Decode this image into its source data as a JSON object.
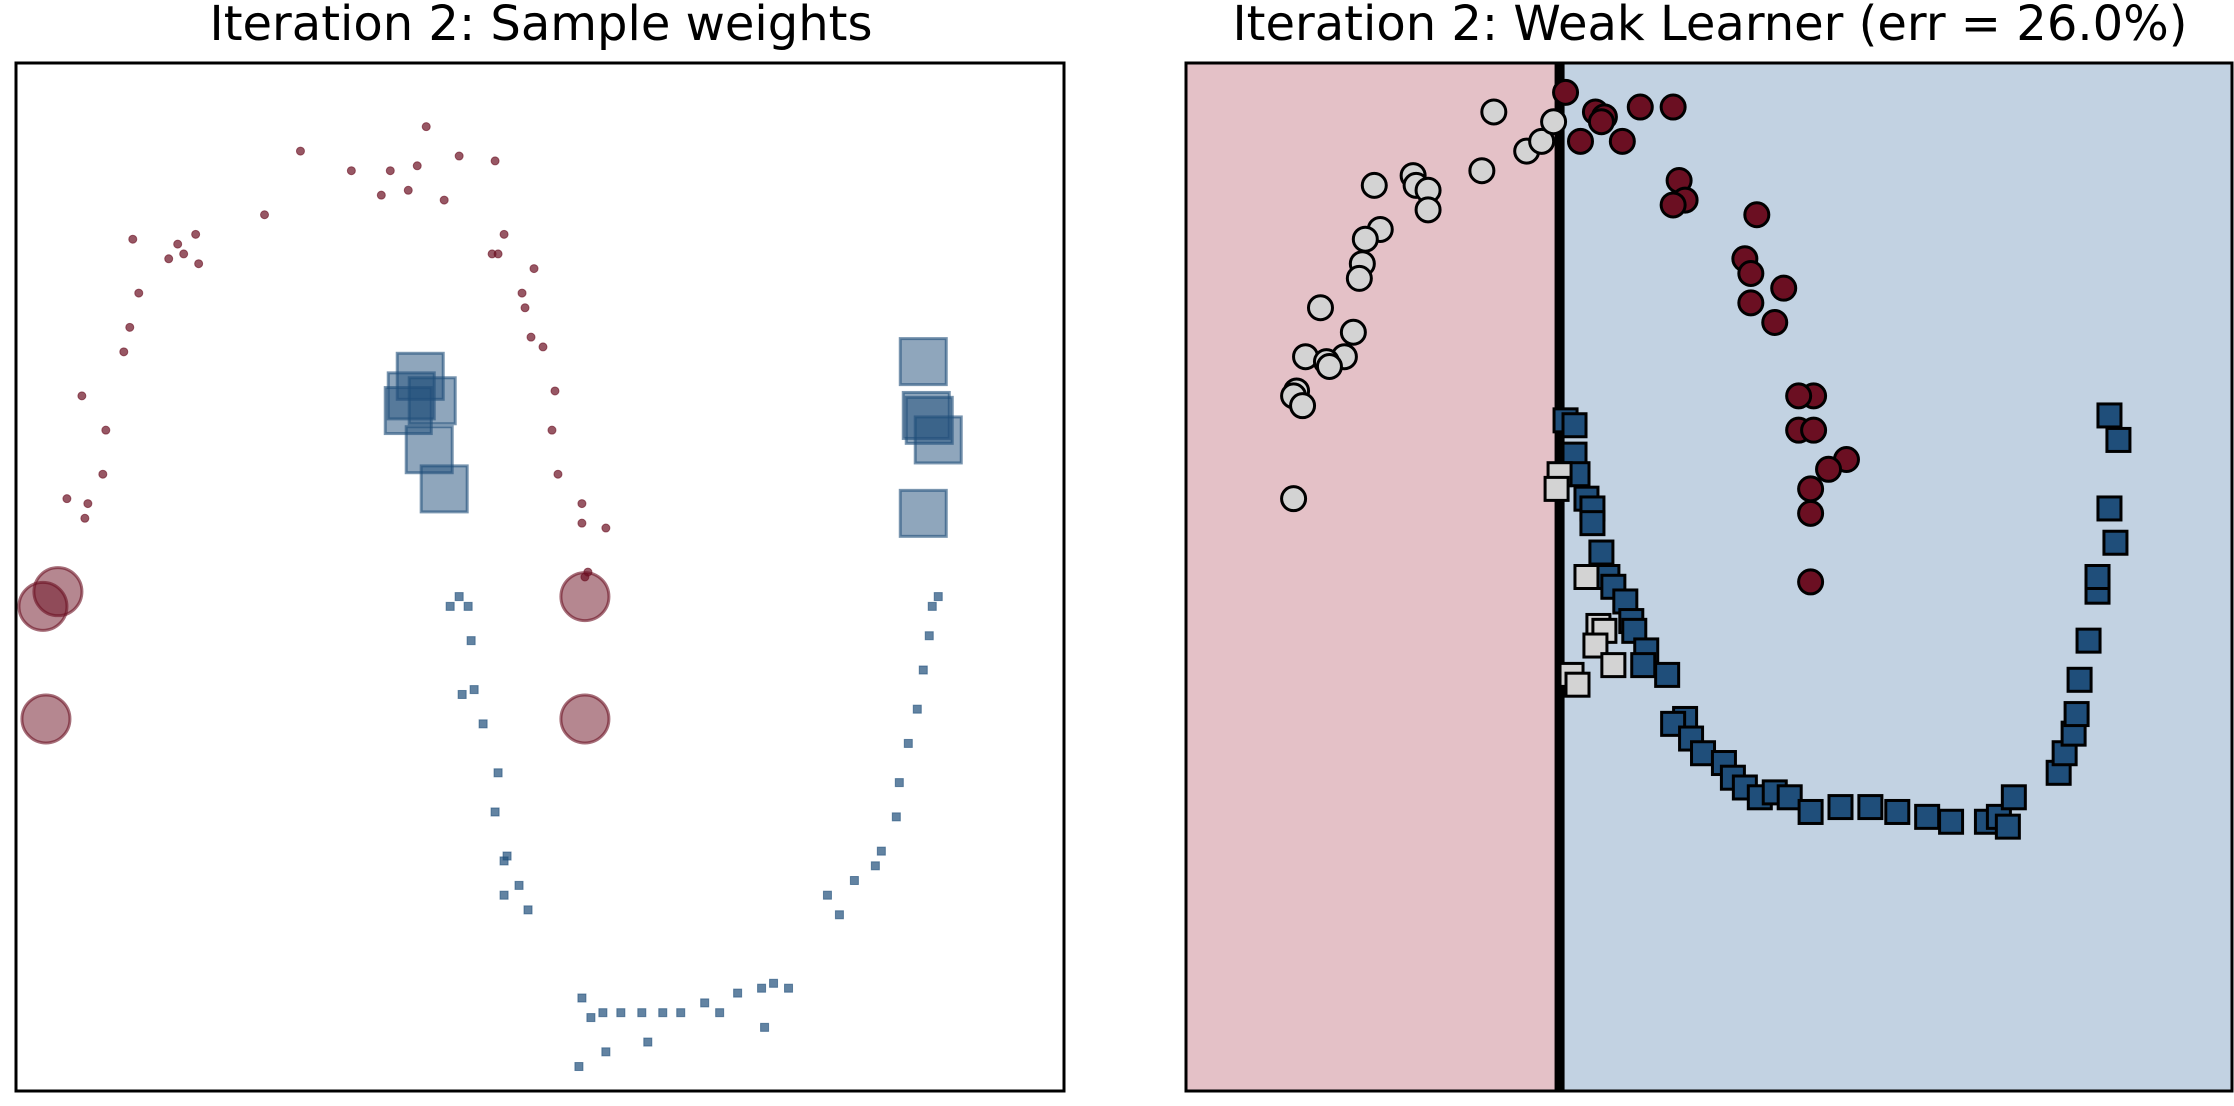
{
  "panels": [
    {
      "title": "Iteration 2: Sample weights"
    },
    {
      "title": "Iteration 2: Weak Learner (err = 26.0%)"
    }
  ],
  "colors": {
    "class0": "#6b0f22",
    "class1": "#1f4e7a",
    "region0": "#e4c1c7",
    "region1": "#c2d2e2",
    "misclassified_fill": "#d3d3d3",
    "boundary": "#000000"
  },
  "chart_data": [
    {
      "type": "scatter",
      "title": "Iteration 2: Sample weights",
      "xlabel": "",
      "ylabel": "",
      "xlim": [
        -1.25,
        2.25
      ],
      "ylim": [
        -0.8,
        1.3
      ],
      "grid": false,
      "encoding": "marker area proportional to sample weight; circles = class 0, squares = class 1",
      "series": [
        {
          "name": "class 0",
          "marker": "circle",
          "points": [
            [
              0.12,
              1.17
            ],
            [
              -0.3,
              1.12
            ],
            [
              -0.13,
              1.08
            ],
            [
              0.0,
              1.08
            ],
            [
              0.09,
              1.09
            ],
            [
              0.23,
              1.11
            ],
            [
              0.35,
              1.1
            ],
            [
              0.06,
              1.04
            ],
            [
              -0.03,
              1.03
            ],
            [
              0.18,
              1.02
            ],
            [
              -0.42,
              0.99
            ],
            [
              -0.65,
              0.95
            ],
            [
              -0.71,
              0.93
            ],
            [
              -0.69,
              0.91
            ],
            [
              -0.74,
              0.9
            ],
            [
              -0.64,
              0.89
            ],
            [
              -0.86,
              0.94
            ],
            [
              0.38,
              0.95
            ],
            [
              0.34,
              0.91
            ],
            [
              0.36,
              0.91
            ],
            [
              0.48,
              0.88
            ],
            [
              -0.84,
              0.83
            ],
            [
              0.44,
              0.83
            ],
            [
              -0.87,
              0.76
            ],
            [
              0.45,
              0.8
            ],
            [
              0.47,
              0.74
            ],
            [
              -0.89,
              0.71
            ],
            [
              0.51,
              0.72
            ],
            [
              -1.03,
              0.62
            ],
            [
              0.55,
              0.63
            ],
            [
              -0.95,
              0.55
            ],
            [
              0.54,
              0.55
            ],
            [
              -0.96,
              0.46
            ],
            [
              0.56,
              0.46
            ],
            [
              -1.08,
              0.41
            ],
            [
              -1.01,
              0.4
            ],
            [
              0.64,
              0.4
            ],
            [
              -1.02,
              0.37
            ],
            [
              0.64,
              0.36
            ],
            [
              0.72,
              0.35
            ],
            [
              0.66,
              0.26
            ],
            [
              0.65,
              0.25
            ]
          ],
          "weights_large": [
            [
              -1.11,
              0.22
            ],
            [
              -1.16,
              0.19
            ],
            [
              0.65,
              0.21
            ],
            [
              -1.15,
              -0.04
            ],
            [
              0.65,
              -0.04
            ]
          ]
        },
        {
          "name": "class 1",
          "marker": "square",
          "points": [
            [
              0.23,
              0.21
            ],
            [
              0.26,
              0.19
            ],
            [
              0.2,
              0.19
            ],
            [
              0.27,
              0.12
            ],
            [
              0.28,
              0.02
            ],
            [
              0.24,
              0.01
            ],
            [
              0.31,
              -0.05
            ],
            [
              0.36,
              -0.15
            ],
            [
              0.35,
              -0.23
            ],
            [
              0.39,
              -0.32
            ],
            [
              0.38,
              -0.33
            ],
            [
              0.43,
              -0.38
            ],
            [
              0.38,
              -0.4
            ],
            [
              0.46,
              -0.43
            ],
            [
              0.64,
              -0.61
            ],
            [
              0.67,
              -0.65
            ],
            [
              0.71,
              -0.64
            ],
            [
              0.77,
              -0.64
            ],
            [
              0.84,
              -0.64
            ],
            [
              0.91,
              -0.64
            ],
            [
              0.97,
              -0.64
            ],
            [
              1.05,
              -0.62
            ],
            [
              1.1,
              -0.64
            ],
            [
              1.16,
              -0.6
            ],
            [
              1.24,
              -0.59
            ],
            [
              1.28,
              -0.58
            ],
            [
              1.33,
              -0.59
            ],
            [
              1.25,
              -0.67
            ],
            [
              0.72,
              -0.72
            ],
            [
              0.86,
              -0.7
            ],
            [
              0.63,
              -0.75
            ],
            [
              1.46,
              -0.4
            ],
            [
              1.55,
              -0.37
            ],
            [
              1.5,
              -0.44
            ],
            [
              1.62,
              -0.34
            ],
            [
              1.64,
              -0.31
            ],
            [
              1.69,
              -0.24
            ],
            [
              1.7,
              -0.17
            ],
            [
              1.73,
              -0.09
            ],
            [
              1.76,
              -0.02
            ],
            [
              1.78,
              0.06
            ],
            [
              1.8,
              0.13
            ],
            [
              1.81,
              0.19
            ],
            [
              1.83,
              0.21
            ]
          ],
          "weights_large": [
            [
              0.1,
              0.66
            ],
            [
              0.06,
              0.59
            ],
            [
              0.07,
              0.62
            ],
            [
              0.14,
              0.61
            ],
            [
              0.13,
              0.51
            ],
            [
              0.18,
              0.43
            ],
            [
              1.78,
              0.69
            ],
            [
              1.79,
              0.58
            ],
            [
              1.8,
              0.57
            ],
            [
              1.83,
              0.53
            ],
            [
              1.78,
              0.38
            ]
          ]
        }
      ]
    },
    {
      "type": "scatter",
      "title": "Iteration 2: Weak Learner (err = 26.0%)",
      "xlabel": "",
      "ylabel": "",
      "xlim": [
        -1.25,
        2.25
      ],
      "ylim": [
        -0.8,
        1.3
      ],
      "grid": false,
      "decision_boundary": {
        "orientation": "vertical",
        "x": 0.0,
        "left_class": "class 0",
        "right_class": "class 1"
      },
      "series": [
        {
          "name": "class 0 correct",
          "marker": "circle",
          "points": [
            [
              0.02,
              1.24
            ],
            [
              0.12,
              1.2
            ],
            [
              0.15,
              1.19
            ],
            [
              0.27,
              1.21
            ],
            [
              0.38,
              1.21
            ],
            [
              0.14,
              1.18
            ],
            [
              0.07,
              1.14
            ],
            [
              0.21,
              1.14
            ],
            [
              0.4,
              1.06
            ],
            [
              0.42,
              1.02
            ],
            [
              0.38,
              1.01
            ],
            [
              0.66,
              0.99
            ],
            [
              0.62,
              0.9
            ],
            [
              0.64,
              0.87
            ],
            [
              0.75,
              0.84
            ],
            [
              0.64,
              0.81
            ],
            [
              0.72,
              0.77
            ],
            [
              0.85,
              0.62
            ],
            [
              0.8,
              0.62
            ],
            [
              0.8,
              0.55
            ],
            [
              0.85,
              0.55
            ],
            [
              0.96,
              0.49
            ],
            [
              0.9,
              0.47
            ],
            [
              0.84,
              0.43
            ],
            [
              0.84,
              0.38
            ],
            [
              0.84,
              0.24
            ]
          ]
        },
        {
          "name": "class 0 misclassified",
          "marker": "circle",
          "points": [
            [
              -0.22,
              1.2
            ],
            [
              -0.62,
              1.05
            ],
            [
              -0.49,
              1.07
            ],
            [
              -0.48,
              1.05
            ],
            [
              -0.44,
              1.04
            ],
            [
              -0.26,
              1.08
            ],
            [
              -0.11,
              1.12
            ],
            [
              -0.06,
              1.14
            ],
            [
              -0.02,
              1.18
            ],
            [
              -0.44,
              1.0
            ],
            [
              -0.6,
              0.96
            ],
            [
              -0.65,
              0.94
            ],
            [
              -0.66,
              0.89
            ],
            [
              -0.67,
              0.86
            ],
            [
              -0.8,
              0.8
            ],
            [
              -0.69,
              0.75
            ],
            [
              -0.72,
              0.7
            ],
            [
              -0.85,
              0.7
            ],
            [
              -0.78,
              0.69
            ],
            [
              -0.77,
              0.68
            ],
            [
              -0.88,
              0.63
            ],
            [
              -0.89,
              0.62
            ],
            [
              -0.86,
              0.6
            ],
            [
              -0.89,
              0.41
            ]
          ]
        },
        {
          "name": "class 1 correct",
          "marker": "square",
          "points": [
            [
              0.02,
              0.57
            ],
            [
              0.05,
              0.56
            ],
            [
              0.05,
              0.5
            ],
            [
              0.06,
              0.46
            ],
            [
              0.09,
              0.41
            ],
            [
              0.11,
              0.39
            ],
            [
              0.11,
              0.36
            ],
            [
              0.14,
              0.3
            ],
            [
              0.16,
              0.25
            ],
            [
              0.18,
              0.23
            ],
            [
              0.22,
              0.2
            ],
            [
              0.24,
              0.16
            ],
            [
              0.25,
              0.14
            ],
            [
              0.29,
              0.1
            ],
            [
              0.36,
              0.05
            ],
            [
              0.28,
              0.07
            ],
            [
              0.42,
              -0.04
            ],
            [
              0.38,
              -0.05
            ],
            [
              0.44,
              -0.08
            ],
            [
              0.48,
              -0.11
            ],
            [
              0.55,
              -0.13
            ],
            [
              0.58,
              -0.16
            ],
            [
              0.62,
              -0.18
            ],
            [
              0.67,
              -0.2
            ],
            [
              0.72,
              -0.19
            ],
            [
              0.77,
              -0.2
            ],
            [
              0.84,
              -0.23
            ],
            [
              0.94,
              -0.22
            ],
            [
              1.04,
              -0.22
            ],
            [
              1.13,
              -0.23
            ],
            [
              1.23,
              -0.24
            ],
            [
              1.31,
              -0.25
            ],
            [
              1.43,
              -0.25
            ],
            [
              1.47,
              -0.24
            ],
            [
              1.5,
              -0.26
            ],
            [
              1.52,
              -0.2
            ],
            [
              1.67,
              -0.15
            ],
            [
              1.69,
              -0.11
            ],
            [
              1.72,
              -0.07
            ],
            [
              1.73,
              -0.03
            ],
            [
              1.74,
              0.04
            ],
            [
              1.77,
              0.12
            ],
            [
              1.8,
              0.22
            ],
            [
              1.8,
              0.25
            ],
            [
              1.86,
              0.32
            ],
            [
              1.84,
              0.39
            ],
            [
              1.84,
              0.58
            ],
            [
              1.87,
              0.53
            ]
          ]
        },
        {
          "name": "class 1 misclassified",
          "marker": "square",
          "points": [
            [
              0.0,
              0.46
            ],
            [
              -0.01,
              0.43
            ],
            [
              0.09,
              0.25
            ],
            [
              0.13,
              0.15
            ],
            [
              0.15,
              0.14
            ],
            [
              0.12,
              0.11
            ],
            [
              0.18,
              0.07
            ],
            [
              0.04,
              0.05
            ],
            [
              0.06,
              0.03
            ]
          ]
        }
      ]
    }
  ]
}
